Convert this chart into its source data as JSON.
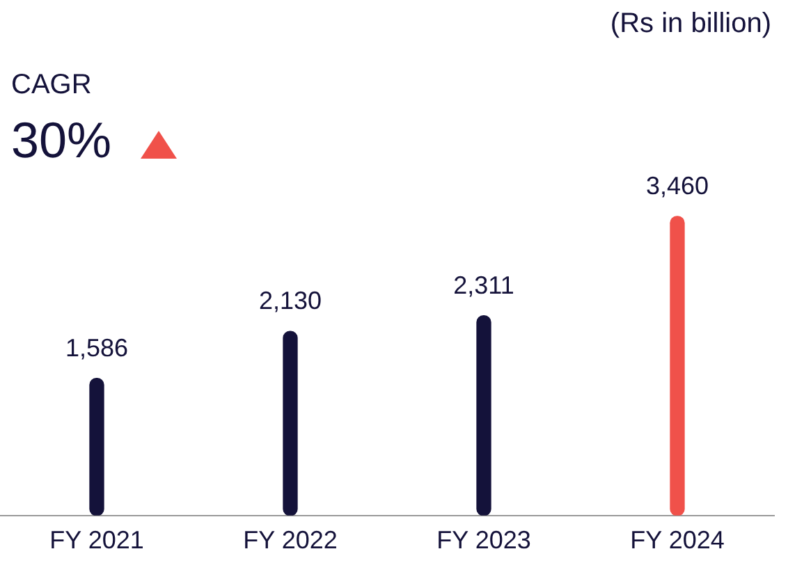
{
  "chart_data": {
    "type": "bar",
    "categories": [
      "FY 2021",
      "FY 2022",
      "FY 2023",
      "FY 2024"
    ],
    "values": [
      1586,
      2130,
      2311,
      3460
    ],
    "colors": [
      "#14123a",
      "#14123a",
      "#14123a",
      "#f0514a"
    ],
    "data_labels": true,
    "value_labels": [
      "1,586",
      "2,130",
      "2,311",
      "3,460"
    ],
    "annotations": [
      "(Rs in billion)",
      "CAGR",
      "30%"
    ],
    "grid": false,
    "legend": false
  }
}
